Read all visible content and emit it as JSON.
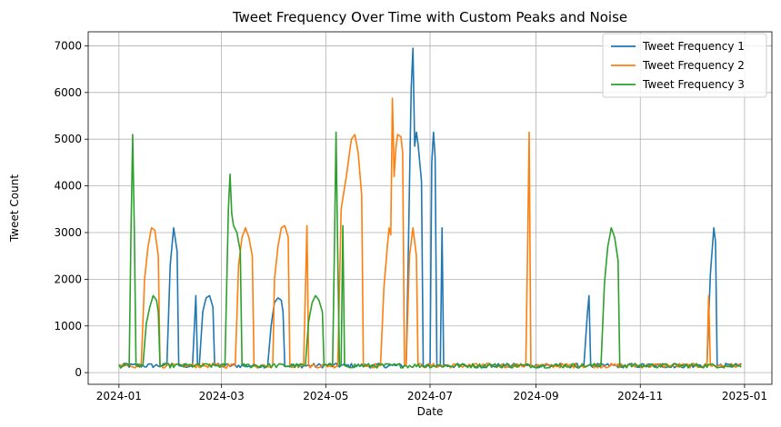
{
  "chart_data": {
    "type": "line",
    "title": "Tweet Frequency Over Time with Custom Peaks and Noise",
    "xlabel": "Date",
    "ylabel": "Tweet Count",
    "xlim": [
      "2023-12-14",
      "2025-01-17"
    ],
    "ylim": [
      -250,
      7300
    ],
    "x_ticks": [
      "2024-01-01",
      "2024-03-01",
      "2024-05-01",
      "2024-07-01",
      "2024-09-01",
      "2024-11-01",
      "2025-01-01"
    ],
    "x_tick_labels": [
      "2024-01",
      "2024-03",
      "2024-05",
      "2024-07",
      "2024-09",
      "2024-11",
      "2025-01"
    ],
    "y_ticks": [
      0,
      1000,
      2000,
      3000,
      4000,
      5000,
      6000,
      7000
    ],
    "y_tick_labels": [
      "0",
      "1000",
      "2000",
      "3000",
      "4000",
      "5000",
      "6000",
      "7000"
    ],
    "grid": true,
    "legend_position": "top-right",
    "baseline": 150,
    "x_start": "2024-01-01",
    "x_end": "2024-12-30",
    "series": [
      {
        "name": "Tweet Frequency 1",
        "color": "#1f77b4",
        "points": [
          [
            "2024-01-29",
            150
          ],
          [
            "2024-01-31",
            2300
          ],
          [
            "2024-02-02",
            3100
          ],
          [
            "2024-02-04",
            2600
          ],
          [
            "2024-02-05",
            150
          ],
          [
            "2024-02-13",
            150
          ],
          [
            "2024-02-15",
            1650
          ],
          [
            "2024-02-16",
            150
          ],
          [
            "2024-02-17",
            150
          ],
          [
            "2024-02-19",
            1300
          ],
          [
            "2024-02-21",
            1600
          ],
          [
            "2024-02-23",
            1650
          ],
          [
            "2024-02-25",
            1400
          ],
          [
            "2024-02-26",
            150
          ],
          [
            "2024-03-28",
            150
          ],
          [
            "2024-03-30",
            1000
          ],
          [
            "2024-04-01",
            1500
          ],
          [
            "2024-04-03",
            1600
          ],
          [
            "2024-04-05",
            1550
          ],
          [
            "2024-04-06",
            1300
          ],
          [
            "2024-04-07",
            150
          ],
          [
            "2024-06-17",
            150
          ],
          [
            "2024-06-18",
            2000
          ],
          [
            "2024-06-20",
            6100
          ],
          [
            "2024-06-21",
            6950
          ],
          [
            "2024-06-22",
            4850
          ],
          [
            "2024-06-23",
            5150
          ],
          [
            "2024-06-24",
            4900
          ],
          [
            "2024-06-26",
            4100
          ],
          [
            "2024-06-27",
            150
          ],
          [
            "2024-07-01",
            150
          ],
          [
            "2024-07-02",
            4500
          ],
          [
            "2024-07-03",
            5150
          ],
          [
            "2024-07-04",
            4600
          ],
          [
            "2024-07-05",
            150
          ],
          [
            "2024-07-07",
            150
          ],
          [
            "2024-07-08",
            3100
          ],
          [
            "2024-07-09",
            150
          ],
          [
            "2024-09-29",
            150
          ],
          [
            "2024-10-01",
            1250
          ],
          [
            "2024-10-02",
            1650
          ],
          [
            "2024-10-03",
            150
          ],
          [
            "2024-12-10",
            150
          ],
          [
            "2024-12-12",
            2100
          ],
          [
            "2024-12-14",
            3100
          ],
          [
            "2024-12-15",
            2800
          ],
          [
            "2024-12-16",
            150
          ]
        ]
      },
      {
        "name": "Tweet Frequency 2",
        "color": "#ff7f0e",
        "points": [
          [
            "2024-01-14",
            150
          ],
          [
            "2024-01-16",
            2000
          ],
          [
            "2024-01-18",
            2700
          ],
          [
            "2024-01-20",
            3100
          ],
          [
            "2024-01-22",
            3050
          ],
          [
            "2024-01-24",
            2500
          ],
          [
            "2024-01-25",
            150
          ],
          [
            "2024-03-09",
            150
          ],
          [
            "2024-03-11",
            2300
          ],
          [
            "2024-03-13",
            2900
          ],
          [
            "2024-03-15",
            3100
          ],
          [
            "2024-03-17",
            2900
          ],
          [
            "2024-03-19",
            2500
          ],
          [
            "2024-03-20",
            150
          ],
          [
            "2024-03-31",
            150
          ],
          [
            "2024-04-01",
            2000
          ],
          [
            "2024-04-03",
            2700
          ],
          [
            "2024-04-05",
            3100
          ],
          [
            "2024-04-07",
            3150
          ],
          [
            "2024-04-09",
            2900
          ],
          [
            "2024-04-10",
            150
          ],
          [
            "2024-04-18",
            150
          ],
          [
            "2024-04-20",
            3150
          ],
          [
            "2024-04-21",
            150
          ],
          [
            "2024-05-08",
            150
          ],
          [
            "2024-05-10",
            3500
          ],
          [
            "2024-05-13",
            4200
          ],
          [
            "2024-05-16",
            5000
          ],
          [
            "2024-05-18",
            5100
          ],
          [
            "2024-05-20",
            4700
          ],
          [
            "2024-05-22",
            3800
          ],
          [
            "2024-05-23",
            150
          ],
          [
            "2024-06-02",
            150
          ],
          [
            "2024-06-04",
            1800
          ],
          [
            "2024-06-06",
            2700
          ],
          [
            "2024-06-07",
            3100
          ],
          [
            "2024-06-08",
            2950
          ],
          [
            "2024-06-09",
            5880
          ],
          [
            "2024-06-10",
            4200
          ],
          [
            "2024-06-11",
            4800
          ],
          [
            "2024-06-12",
            5100
          ],
          [
            "2024-06-14",
            5050
          ],
          [
            "2024-06-15",
            4700
          ],
          [
            "2024-06-16",
            150
          ],
          [
            "2024-06-17",
            150
          ],
          [
            "2024-06-19",
            2500
          ],
          [
            "2024-06-21",
            3100
          ],
          [
            "2024-06-23",
            2500
          ],
          [
            "2024-06-24",
            150
          ],
          [
            "2024-08-26",
            150
          ],
          [
            "2024-08-27",
            2500
          ],
          [
            "2024-08-28",
            5150
          ],
          [
            "2024-08-29",
            150
          ],
          [
            "2024-12-10",
            150
          ],
          [
            "2024-12-11",
            1650
          ],
          [
            "2024-12-12",
            150
          ]
        ]
      },
      {
        "name": "Tweet Frequency 3",
        "color": "#2ca02c",
        "points": [
          [
            "2024-01-07",
            150
          ],
          [
            "2024-01-08",
            2900
          ],
          [
            "2024-01-09",
            5100
          ],
          [
            "2024-01-10",
            3000
          ],
          [
            "2024-01-11",
            150
          ],
          [
            "2024-01-15",
            150
          ],
          [
            "2024-01-17",
            1050
          ],
          [
            "2024-01-19",
            1400
          ],
          [
            "2024-01-21",
            1650
          ],
          [
            "2024-01-23",
            1550
          ],
          [
            "2024-01-24",
            1300
          ],
          [
            "2024-01-25",
            150
          ],
          [
            "2024-03-03",
            150
          ],
          [
            "2024-03-05",
            3500
          ],
          [
            "2024-03-06",
            4250
          ],
          [
            "2024-03-07",
            3400
          ],
          [
            "2024-03-08",
            3150
          ],
          [
            "2024-03-10",
            3000
          ],
          [
            "2024-03-12",
            2600
          ],
          [
            "2024-03-13",
            150
          ],
          [
            "2024-04-19",
            150
          ],
          [
            "2024-04-21",
            1100
          ],
          [
            "2024-04-23",
            1500
          ],
          [
            "2024-04-25",
            1650
          ],
          [
            "2024-04-27",
            1550
          ],
          [
            "2024-04-29",
            1300
          ],
          [
            "2024-04-30",
            150
          ],
          [
            "2024-05-05",
            150
          ],
          [
            "2024-05-06",
            2500
          ],
          [
            "2024-05-07",
            5150
          ],
          [
            "2024-05-08",
            2500
          ],
          [
            "2024-05-09",
            150
          ],
          [
            "2024-05-10",
            150
          ],
          [
            "2024-05-11",
            3150
          ],
          [
            "2024-05-12",
            150
          ],
          [
            "2024-10-09",
            150
          ],
          [
            "2024-10-11",
            1900
          ],
          [
            "2024-10-13",
            2700
          ],
          [
            "2024-10-15",
            3100
          ],
          [
            "2024-10-17",
            2900
          ],
          [
            "2024-10-19",
            2400
          ],
          [
            "2024-10-20",
            150
          ],
          [
            "2024-12-28",
            150
          ],
          [
            "2024-12-29",
            150
          ]
        ]
      }
    ]
  }
}
